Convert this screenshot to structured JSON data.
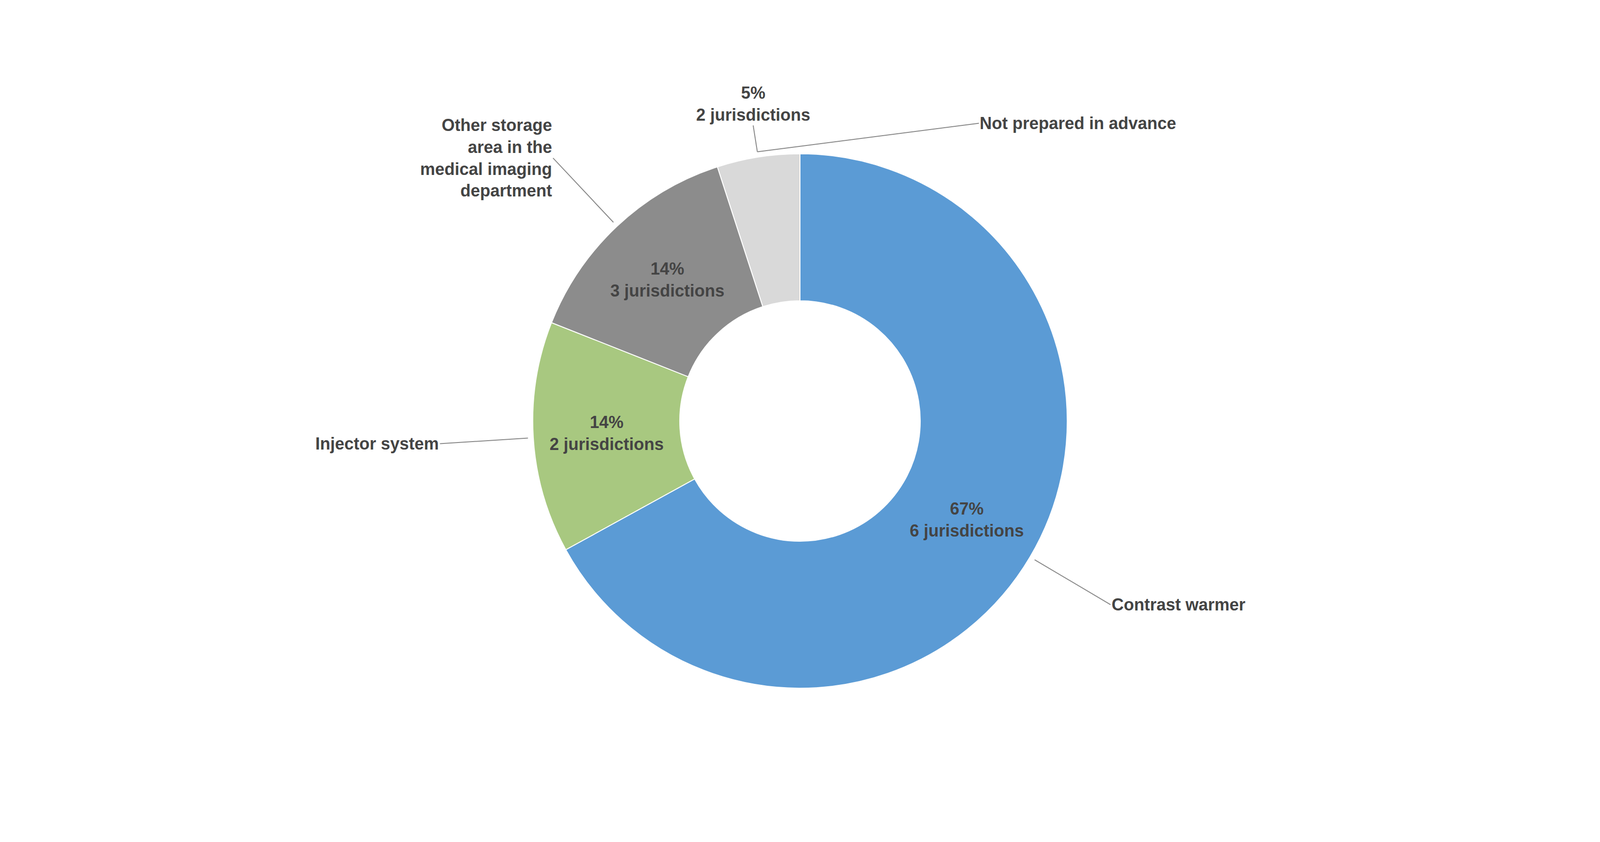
{
  "chart_data": {
    "type": "donut",
    "categories": [
      "Contrast warmer",
      "Injector system",
      "Other storage\narea in the\nmedical imaging\ndepartment",
      "Not prepared in advance"
    ],
    "values": [
      67,
      14,
      14,
      5
    ],
    "value_labels": [
      "67%\n6 jurisdictions",
      "14%\n2 jurisdictions",
      "14%\n3 jurisdictions",
      "5%\n2 jurisdictions"
    ],
    "colors": [
      "#5B9BD5",
      "#A8C880",
      "#8C8C8C",
      "#D9D9D9"
    ],
    "data_labels": true
  }
}
